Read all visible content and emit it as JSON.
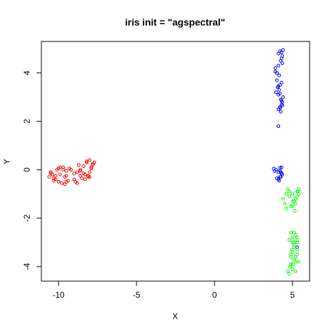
{
  "chart_data": {
    "type": "scatter",
    "title": "iris init = \"agspectral\"",
    "xlabel": "X",
    "ylabel": "Y",
    "xlim": [
      -11.1,
      6.1
    ],
    "ylim": [
      -4.6,
      5.3
    ],
    "xticks": [
      -10,
      -5,
      0,
      5
    ],
    "xtick_labels": [
      "-10",
      "-5",
      "0",
      "5"
    ],
    "yticks": [
      -4,
      -2,
      0,
      2,
      4
    ],
    "ytick_labels": [
      "-4",
      "-2",
      "0",
      "2",
      "4"
    ],
    "grid": false,
    "legend": "none",
    "marker": "open-circle",
    "series": [
      {
        "color": "#ff0000",
        "x": [
          -10.6,
          -10.5,
          -10.4,
          -10.3,
          -10.5,
          -10.2,
          -10.0,
          -9.9,
          -9.7,
          -9.5,
          -9.3,
          -9.2,
          -9.8,
          -9.6,
          -9.4,
          -10.1,
          -9.9,
          -9.6,
          -9.5,
          -10.2,
          -9.0,
          -8.8,
          -8.6,
          -8.4,
          -8.3,
          -8.1,
          -8.0,
          -7.9,
          -7.8,
          -7.7,
          -7.8,
          -8.0,
          -8.2,
          -8.4,
          -8.6,
          -8.7,
          -8.5,
          -8.3,
          -8.1,
          -7.9,
          -8.0,
          -8.2,
          -8.6,
          -9.0,
          -9.5,
          -10.3,
          -10.0,
          -9.7,
          -8.9,
          -8.8
        ],
        "y": [
          -0.3,
          -0.1,
          -0.2,
          -0.35,
          -0.15,
          -0.4,
          -0.5,
          0.1,
          0.0,
          -0.05,
          0.05,
          0.0,
          -0.55,
          -0.6,
          -0.45,
          0.0,
          -0.2,
          -0.3,
          -0.5,
          -0.25,
          -0.4,
          -0.1,
          -0.05,
          -0.15,
          -0.2,
          -0.25,
          -0.3,
          0.1,
          0.2,
          0.3,
          0.25,
          0.4,
          0.35,
          0.15,
          0.0,
          0.2,
          -0.35,
          -0.4,
          -0.3,
          0.05,
          -0.1,
          0.3,
          -0.25,
          -0.15,
          -0.25,
          -0.45,
          0.05,
          0.1,
          -0.5,
          -0.55
        ]
      },
      {
        "color": "#0000ff",
        "x": [
          4.2,
          4.3,
          4.1,
          4.4,
          4.35,
          4.25,
          4.1,
          4.0,
          4.15,
          4.3,
          4.2,
          4.05,
          3.95,
          4.1,
          4.25,
          4.4,
          4.35,
          4.2,
          4.1,
          4.3,
          4.25,
          4.15,
          4.0,
          3.9,
          4.3,
          4.35,
          4.2,
          4.1,
          4.3,
          4.25,
          3.8,
          3.85,
          3.95,
          4.1,
          4.2,
          4.3,
          4.35,
          4.2,
          4.0,
          4.1,
          4.3,
          4.25,
          4.15,
          5.3,
          4.2,
          4.1,
          3.9,
          4.35,
          4.3,
          4.2
        ],
        "y": [
          4.9,
          4.85,
          4.8,
          4.95,
          4.7,
          4.5,
          4.3,
          4.0,
          3.9,
          3.6,
          3.5,
          3.4,
          3.2,
          3.1,
          2.9,
          3.0,
          2.8,
          2.6,
          2.5,
          2.7,
          2.4,
          3.3,
          3.7,
          4.2,
          4.6,
          4.4,
          2.55,
          1.8,
          0.1,
          -0.1,
          0.05,
          -0.05,
          0.0,
          -0.1,
          -0.05,
          -0.15,
          -0.2,
          -0.3,
          -0.35,
          -0.4,
          -0.15,
          -0.3,
          -0.45,
          -3.2,
          3.15,
          3.45,
          4.05,
          2.65,
          2.85,
          0.08
        ]
      },
      {
        "color": "#00ff00",
        "x": [
          4.7,
          4.8,
          5.0,
          5.2,
          5.3,
          5.4,
          5.3,
          5.1,
          4.9,
          4.6,
          4.5,
          4.4,
          4.6,
          4.8,
          5.0,
          5.2,
          5.4,
          5.35,
          5.2,
          5.0,
          4.9,
          5.0,
          5.1,
          5.2,
          5.3,
          5.1,
          5.0,
          4.9,
          5.2,
          5.3,
          5.1,
          4.9,
          4.85,
          5.0,
          5.2,
          5.3,
          5.1,
          5.0,
          4.8,
          4.9,
          5.2,
          5.4,
          5.3,
          5.1,
          4.7,
          4.8,
          5.0,
          5.3,
          4.95,
          5.15
        ],
        "y": [
          -0.8,
          -0.9,
          -1.0,
          -1.2,
          -1.1,
          -0.8,
          -0.9,
          -1.3,
          -1.5,
          -1.6,
          -1.4,
          -1.2,
          -1.0,
          -1.1,
          -1.3,
          -1.2,
          -1.0,
          -0.9,
          -1.4,
          -1.5,
          -2.6,
          -2.8,
          -3.0,
          -2.7,
          -2.9,
          -3.2,
          -3.4,
          -3.6,
          -3.8,
          -3.5,
          -3.7,
          -3.9,
          -4.0,
          -4.1,
          -4.2,
          -3.3,
          -3.1,
          -3.0,
          -2.9,
          -3.5,
          -3.6,
          -3.8,
          -2.8,
          -2.6,
          -4.2,
          -4.3,
          -3.9,
          -3.0,
          -3.3,
          -1.7
        ]
      }
    ]
  }
}
